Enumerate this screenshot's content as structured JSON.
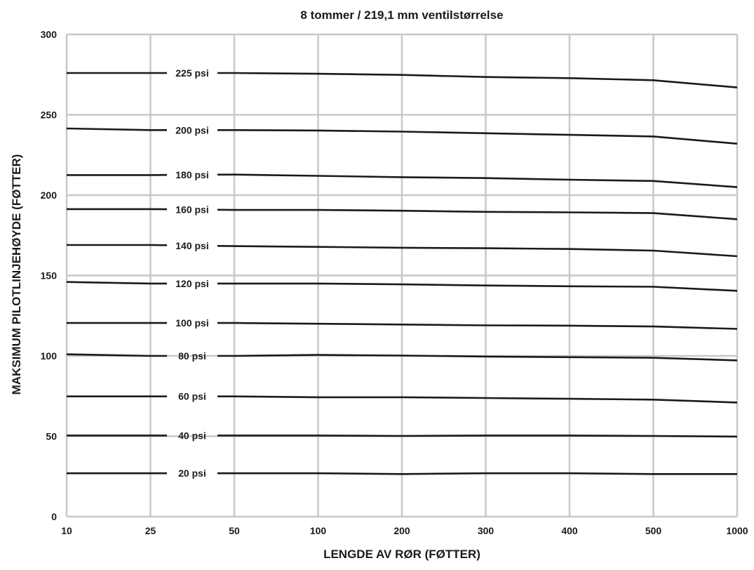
{
  "chart_data": {
    "type": "line",
    "title": "8 tommer / 219,1 mm ventilstørrelse",
    "xlabel": "LENGDE AV RØR (FØTTER)",
    "ylabel": "MAKSIMUM PILOTLINJEHØYDE (FØTTER)",
    "x_scale": "categorical",
    "categories": [
      "10",
      "25",
      "50",
      "100",
      "200",
      "300",
      "400",
      "500",
      "1000"
    ],
    "ylim": [
      0,
      300
    ],
    "yticks": [
      0,
      50,
      100,
      150,
      200,
      250,
      300
    ],
    "grid": true,
    "legend": "inline labels",
    "series": [
      {
        "name": "225 psi",
        "values": [
          276,
          276,
          276,
          275.5,
          274.8,
          273.5,
          272.8,
          271.5,
          267
        ]
      },
      {
        "name": "200 psi",
        "values": [
          241.5,
          240.5,
          240.5,
          240.2,
          239.5,
          238.5,
          237.5,
          236.5,
          232
        ]
      },
      {
        "name": "180 psi",
        "values": [
          212.5,
          212.5,
          212.8,
          212,
          211.2,
          210.6,
          209.6,
          208.8,
          205
        ]
      },
      {
        "name": "160 psi",
        "values": [
          191.3,
          191.3,
          190.8,
          190.8,
          190.3,
          189.6,
          189.3,
          188.8,
          185
        ]
      },
      {
        "name": "140 psi",
        "values": [
          169,
          169,
          168.3,
          167.8,
          167.3,
          167,
          166.5,
          165.5,
          162
        ]
      },
      {
        "name": "120 psi",
        "values": [
          146,
          145,
          145,
          145,
          144.5,
          143.8,
          143.3,
          143,
          140.5
        ]
      },
      {
        "name": "100 psi",
        "values": [
          120.5,
          120.5,
          120.5,
          120,
          119.5,
          119,
          118.8,
          118.3,
          116.8
        ]
      },
      {
        "name": "80 psi",
        "values": [
          101,
          100,
          100,
          100.6,
          100.2,
          99.6,
          99.2,
          98.8,
          97.2
        ]
      },
      {
        "name": "60 psi",
        "values": [
          74.8,
          74.8,
          74.8,
          74.3,
          74.3,
          73.8,
          73.3,
          72.8,
          71
        ]
      },
      {
        "name": "40 psi",
        "values": [
          50.5,
          50.5,
          50.5,
          50.5,
          50.2,
          50.5,
          50.5,
          50.2,
          49.8
        ]
      },
      {
        "name": "20 psi",
        "values": [
          27,
          27,
          27,
          27,
          26.5,
          27,
          27,
          26.5,
          26.5
        ]
      }
    ]
  }
}
